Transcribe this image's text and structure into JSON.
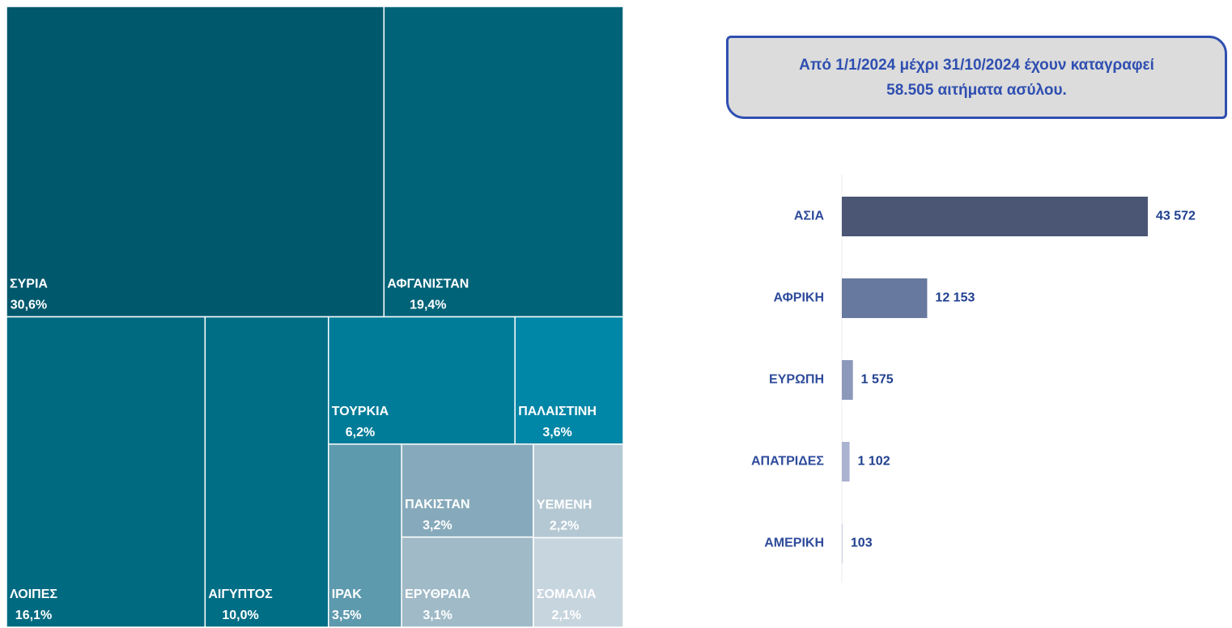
{
  "chart_data": [
    {
      "type": "treemap",
      "categories": [
        "ΣΥΡΙΑ",
        "ΑΦΓΑΝΙΣΤΑΝ",
        "ΛΟΙΠΕΣ",
        "ΑΙΓΥΠΤΟΣ",
        "ΤΟΥΡΚΙΑ",
        "ΠΑΛΑΙΣΤΙΝΗ",
        "ΙΡΑΚ",
        "ΠΑΚΙΣΤΑΝ",
        "ΕΡΥΘΡΑΙΑ",
        "ΥΕΜΕΝΗ",
        "ΣΟΜΑΛΙΑ"
      ],
      "values": [
        30.6,
        19.4,
        16.1,
        10.0,
        6.2,
        3.6,
        3.5,
        3.2,
        3.1,
        2.2,
        2.1
      ],
      "value_labels": [
        "30,6%",
        "19,4%",
        "16,1%",
        "10,0%",
        "6,2%",
        "3,6%",
        "3,5%",
        "3,2%",
        "3,1%",
        "2,2%",
        "2,1%"
      ],
      "colors": [
        "#00586d",
        "#006378",
        "#006a80",
        "#006e85",
        "#007c99",
        "#0086a6",
        "#5e9aae",
        "#86aabb",
        "#a0bac7",
        "#b4c8d3",
        "#c7d5de"
      ]
    },
    {
      "type": "hbar",
      "annotation": "Από 1/1/2024 μέχρι 31/10/2024 έχουν καταγραφεί 58.505 αιτήματα ασύλου.",
      "categories": [
        "ΑΣΙΑ",
        "ΑΦΡΙΚΗ",
        "ΕΥΡΩΠΗ",
        "ΑΠΑΤΡΙΔΕΣ",
        "ΑΜΕΡΙΚΗ"
      ],
      "values": [
        43572,
        12153,
        1575,
        1102,
        103
      ],
      "value_labels": [
        "43 572",
        "12 153",
        "1 575",
        "1 102",
        "103"
      ],
      "colors": [
        "#4a5673",
        "#67799f",
        "#8c99bb",
        "#aab3cf",
        "#c5cbe0"
      ]
    }
  ]
}
